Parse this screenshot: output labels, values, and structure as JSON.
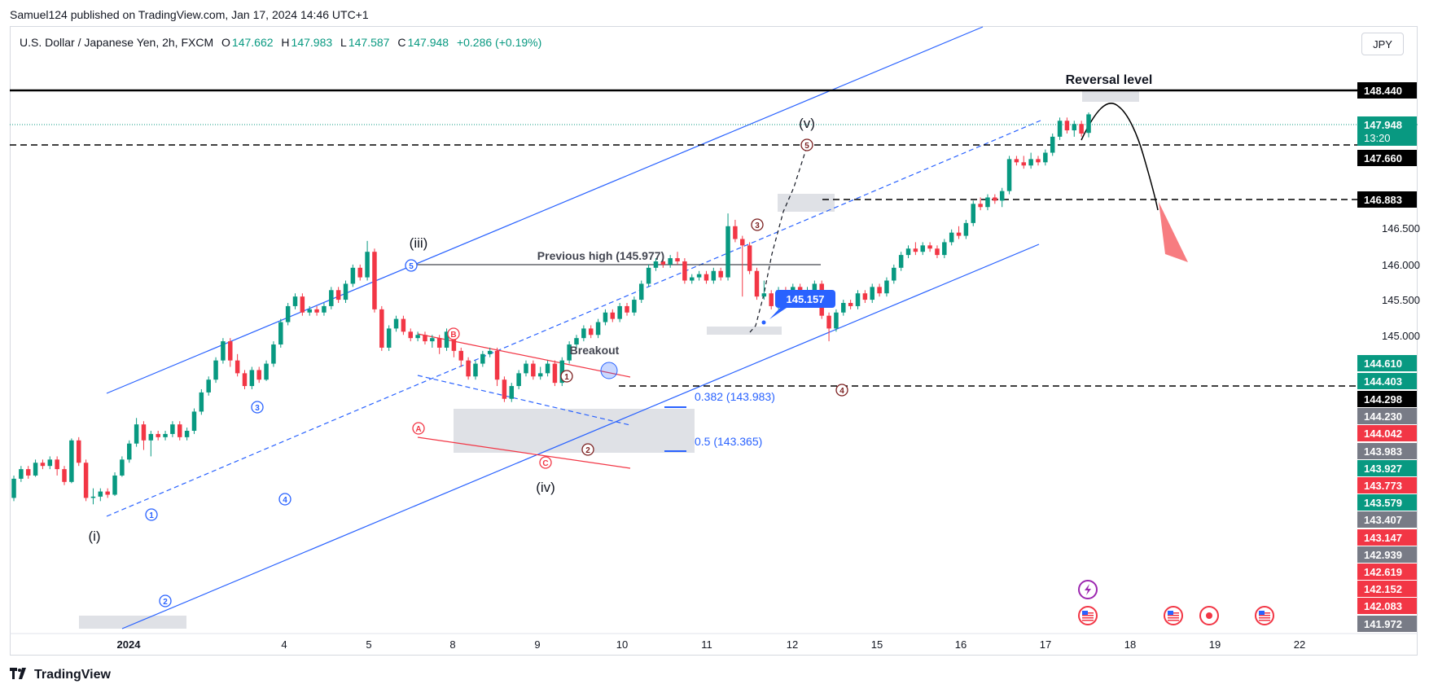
{
  "publisher_line": "Samuel124 published on TradingView.com, Jan 17, 2024 14:46 UTC+1",
  "symbol": {
    "name": "U.S. Dollar / Japanese Yen, 2h, FXCM",
    "o_label": "O",
    "o": "147.662",
    "h_label": "H",
    "h": "147.983",
    "l_label": "L",
    "l": "147.587",
    "c_label": "C",
    "c": "147.948",
    "change": "+0.286 (+0.19%)"
  },
  "currency_button": "JPY",
  "brand": "TradingView",
  "colors": {
    "up": "#089981",
    "down": "#f23645",
    "channel": "#2962ff",
    "accent": "#2962ff"
  },
  "chart_data": {
    "type": "candlestick",
    "timeframe": "2h",
    "x_ticks": [
      "2024",
      "4",
      "5",
      "8",
      "9",
      "10",
      "11",
      "12",
      "15",
      "16",
      "17",
      "18",
      "19",
      "22"
    ],
    "y_ticks": [
      "146.500",
      "146.000",
      "145.500",
      "145.000"
    ],
    "price_tags": [
      {
        "label": "148.440",
        "color": "#000000"
      },
      {
        "label": "147.948",
        "sub": "13:20",
        "color": "#089981"
      },
      {
        "label": "147.660",
        "color": "#000000"
      },
      {
        "label": "146.883",
        "color": "#000000"
      },
      {
        "label": "144.610",
        "color": "#089981"
      },
      {
        "label": "144.403",
        "color": "#089981"
      },
      {
        "label": "144.298",
        "color": "#000000"
      },
      {
        "label": "144.230",
        "color": "#787b86"
      },
      {
        "label": "144.042",
        "color": "#f23645"
      },
      {
        "label": "143.983",
        "color": "#787b86"
      },
      {
        "label": "143.927",
        "color": "#089981"
      },
      {
        "label": "143.773",
        "color": "#f23645"
      },
      {
        "label": "143.579",
        "color": "#089981"
      },
      {
        "label": "143.407",
        "color": "#787b86"
      },
      {
        "label": "143.147",
        "color": "#f23645"
      },
      {
        "label": "142.939",
        "color": "#787b86"
      },
      {
        "label": "142.619",
        "color": "#f23645"
      },
      {
        "label": "142.152",
        "color": "#f23645"
      },
      {
        "label": "142.083",
        "color": "#f23645"
      },
      {
        "label": "141.972",
        "color": "#787b86"
      }
    ],
    "annotations": {
      "reversal": "Reversal level",
      "previous_high": "Previous high (145.977)",
      "breakout": "Breakout",
      "fib_382": "0.382 (143.983)",
      "fib_5": "0.5 (143.365)",
      "callout": "145.157",
      "wave_i": "(i)",
      "wave_iii": "(iii)",
      "wave_iv": "(iv)",
      "wave_v": "(v)",
      "circle_labels": [
        "1",
        "2",
        "3",
        "4",
        "5",
        "A",
        "B",
        "C"
      ]
    },
    "candles": [
      [
        141.95,
        142.25,
        141.9,
        142.3
      ],
      [
        142.25,
        142.4,
        142.2,
        142.45
      ],
      [
        142.4,
        142.3,
        142.25,
        142.45
      ],
      [
        142.3,
        142.5,
        142.28,
        142.55
      ],
      [
        142.5,
        142.45,
        142.4,
        142.55
      ],
      [
        142.45,
        142.55,
        142.4,
        142.6
      ],
      [
        142.55,
        142.4,
        142.3,
        142.6
      ],
      [
        142.4,
        142.2,
        142.15,
        142.45
      ],
      [
        142.2,
        142.85,
        142.18,
        142.88
      ],
      [
        142.85,
        142.5,
        142.45,
        142.9
      ],
      [
        142.5,
        141.95,
        141.9,
        142.55
      ],
      [
        141.95,
        141.97,
        141.85,
        142.1
      ],
      [
        141.97,
        142.05,
        141.9,
        142.1
      ],
      [
        142.05,
        142.0,
        141.95,
        142.1
      ],
      [
        142.0,
        142.3,
        141.98,
        142.35
      ],
      [
        142.3,
        142.55,
        142.28,
        142.6
      ],
      [
        142.55,
        142.8,
        142.5,
        142.85
      ],
      [
        142.8,
        143.1,
        142.75,
        143.2
      ],
      [
        143.1,
        142.85,
        142.7,
        143.15
      ],
      [
        142.85,
        142.95,
        142.6,
        143.0
      ],
      [
        142.95,
        142.9,
        142.85,
        143.0
      ],
      [
        142.9,
        142.95,
        142.85,
        143.0
      ],
      [
        142.95,
        143.1,
        142.9,
        143.15
      ],
      [
        143.1,
        142.9,
        142.85,
        143.15
      ],
      [
        142.9,
        143.0,
        142.85,
        143.05
      ],
      [
        143.0,
        143.3,
        142.95,
        143.35
      ],
      [
        143.3,
        143.6,
        143.25,
        143.65
      ],
      [
        143.6,
        143.8,
        143.55,
        143.85
      ],
      [
        143.8,
        144.1,
        143.75,
        144.15
      ],
      [
        144.1,
        144.4,
        144.05,
        144.45
      ],
      [
        144.4,
        144.1,
        144.0,
        144.45
      ],
      [
        144.1,
        143.9,
        143.85,
        144.2
      ],
      [
        143.9,
        143.7,
        143.65,
        143.95
      ],
      [
        143.7,
        143.95,
        143.65,
        144.0
      ],
      [
        143.95,
        143.8,
        143.75,
        144.0
      ],
      [
        143.8,
        144.05,
        143.78,
        144.1
      ],
      [
        144.05,
        144.35,
        144.0,
        144.4
      ],
      [
        144.35,
        144.7,
        144.3,
        144.75
      ],
      [
        144.7,
        144.95,
        144.65,
        145.0
      ],
      [
        144.95,
        145.1,
        144.9,
        145.15
      ],
      [
        145.1,
        144.85,
        144.8,
        145.15
      ],
      [
        144.85,
        144.9,
        144.8,
        144.95
      ],
      [
        144.9,
        144.85,
        144.8,
        144.95
      ],
      [
        144.85,
        144.95,
        144.8,
        145.0
      ],
      [
        144.95,
        145.2,
        144.9,
        145.25
      ],
      [
        145.2,
        145.05,
        145.0,
        145.25
      ],
      [
        145.05,
        145.3,
        145.0,
        145.35
      ],
      [
        145.3,
        145.55,
        145.25,
        145.6
      ],
      [
        145.55,
        145.4,
        145.35,
        145.6
      ],
      [
        145.4,
        145.8,
        145.35,
        145.97
      ],
      [
        145.8,
        144.9,
        144.85,
        145.85
      ],
      [
        144.9,
        144.3,
        144.25,
        144.95
      ],
      [
        144.3,
        144.6,
        144.25,
        144.65
      ],
      [
        144.6,
        144.75,
        144.55,
        144.8
      ],
      [
        144.75,
        144.55,
        144.5,
        144.8
      ],
      [
        144.55,
        144.45,
        144.4,
        144.6
      ],
      [
        144.45,
        144.5,
        144.4,
        144.55
      ],
      [
        144.5,
        144.4,
        144.35,
        144.55
      ],
      [
        144.4,
        144.45,
        144.3,
        144.5
      ],
      [
        144.45,
        144.3,
        144.2,
        144.5
      ],
      [
        144.3,
        144.55,
        144.25,
        144.6
      ],
      [
        144.55,
        144.25,
        144.15,
        144.6
      ],
      [
        144.25,
        144.1,
        144.0,
        144.3
      ],
      [
        144.1,
        143.85,
        143.8,
        144.15
      ],
      [
        143.85,
        144.05,
        143.8,
        144.1
      ],
      [
        144.05,
        144.2,
        144.0,
        144.25
      ],
      [
        144.2,
        144.25,
        144.15,
        144.3
      ],
      [
        144.25,
        143.8,
        143.7,
        144.3
      ],
      [
        143.8,
        143.5,
        143.45,
        143.85
      ],
      [
        143.5,
        143.7,
        143.45,
        143.75
      ],
      [
        143.7,
        143.9,
        143.65,
        143.95
      ],
      [
        143.9,
        144.05,
        143.85,
        144.1
      ],
      [
        144.05,
        143.85,
        143.8,
        144.1
      ],
      [
        143.85,
        143.9,
        143.8,
        144.0
      ],
      [
        143.9,
        144.05,
        143.85,
        144.1
      ],
      [
        144.05,
        143.75,
        143.7,
        144.1
      ],
      [
        143.75,
        144.1,
        143.7,
        144.15
      ],
      [
        144.1,
        144.35,
        144.05,
        144.4
      ],
      [
        144.35,
        144.45,
        144.3,
        144.5
      ],
      [
        144.45,
        144.6,
        144.4,
        144.65
      ],
      [
        144.6,
        144.5,
        144.45,
        144.65
      ],
      [
        144.5,
        144.7,
        144.45,
        144.75
      ],
      [
        144.7,
        144.85,
        144.65,
        144.9
      ],
      [
        144.85,
        144.75,
        144.7,
        144.9
      ],
      [
        144.75,
        144.95,
        144.7,
        145.0
      ],
      [
        144.95,
        144.85,
        144.8,
        145.0
      ],
      [
        144.85,
        145.05,
        144.8,
        145.1
      ],
      [
        145.05,
        145.3,
        145.0,
        145.35
      ],
      [
        145.3,
        145.55,
        145.25,
        145.6
      ],
      [
        145.55,
        145.65,
        145.5,
        145.7
      ],
      [
        145.65,
        145.6,
        145.55,
        145.75
      ],
      [
        145.6,
        145.7,
        145.55,
        145.75
      ],
      [
        145.7,
        145.65,
        145.6,
        145.8
      ],
      [
        145.65,
        145.35,
        145.3,
        145.7
      ],
      [
        145.35,
        145.4,
        145.3,
        145.45
      ],
      [
        145.4,
        145.45,
        145.35,
        145.5
      ],
      [
        145.45,
        145.35,
        145.3,
        145.5
      ],
      [
        145.35,
        145.5,
        145.3,
        145.55
      ],
      [
        145.5,
        145.4,
        145.35,
        145.55
      ],
      [
        145.4,
        146.2,
        145.35,
        146.4
      ],
      [
        146.2,
        146.0,
        145.95,
        146.3
      ],
      [
        146.0,
        145.9,
        145.1,
        146.05
      ],
      [
        145.9,
        145.5,
        145.45,
        145.95
      ],
      [
        145.5,
        145.1,
        145.05,
        145.55
      ],
      [
        145.1,
        145.15,
        145.05,
        145.35
      ],
      [
        145.15,
        144.95,
        144.9,
        145.2
      ],
      [
        144.95,
        145.2,
        144.9,
        145.25
      ],
      [
        145.2,
        145.05,
        145.0,
        145.25
      ],
      [
        145.05,
        145.25,
        145.0,
        145.3
      ],
      [
        145.25,
        145.1,
        145.05,
        145.3
      ],
      [
        145.1,
        145.2,
        145.05,
        145.25
      ],
      [
        145.2,
        145.3,
        145.15,
        145.35
      ],
      [
        145.3,
        144.8,
        144.75,
        145.35
      ],
      [
        144.8,
        144.6,
        144.4,
        144.85
      ],
      [
        144.6,
        144.85,
        144.55,
        144.9
      ],
      [
        144.85,
        145.0,
        144.8,
        145.05
      ],
      [
        145.0,
        144.95,
        144.9,
        145.05
      ],
      [
        144.95,
        145.15,
        144.9,
        145.2
      ],
      [
        145.15,
        145.05,
        145.0,
        145.2
      ],
      [
        145.05,
        145.25,
        145.0,
        145.3
      ],
      [
        145.25,
        145.15,
        145.1,
        145.3
      ],
      [
        145.15,
        145.35,
        145.1,
        145.4
      ],
      [
        145.35,
        145.55,
        145.3,
        145.6
      ],
      [
        145.55,
        145.75,
        145.5,
        145.8
      ],
      [
        145.75,
        145.85,
        145.7,
        145.9
      ],
      [
        145.85,
        145.8,
        145.75,
        145.95
      ],
      [
        145.8,
        145.9,
        145.75,
        145.95
      ],
      [
        145.9,
        145.85,
        145.8,
        145.95
      ],
      [
        145.85,
        145.75,
        145.7,
        145.9
      ],
      [
        145.75,
        145.95,
        145.7,
        146.0
      ],
      [
        145.95,
        146.1,
        145.9,
        146.15
      ],
      [
        146.1,
        146.05,
        146.0,
        146.2
      ],
      [
        146.05,
        146.25,
        146.0,
        146.3
      ],
      [
        146.25,
        146.55,
        146.2,
        146.6
      ],
      [
        146.55,
        146.5,
        146.45,
        146.65
      ],
      [
        146.5,
        146.65,
        146.45,
        146.7
      ],
      [
        146.65,
        146.6,
        146.55,
        146.7
      ],
      [
        146.6,
        146.75,
        146.5,
        146.8
      ],
      [
        146.75,
        147.25,
        146.7,
        147.3
      ],
      [
        147.25,
        147.2,
        147.15,
        147.3
      ],
      [
        147.2,
        147.15,
        147.1,
        147.3
      ],
      [
        147.15,
        147.25,
        147.1,
        147.35
      ],
      [
        147.25,
        147.2,
        147.15,
        147.3
      ],
      [
        147.2,
        147.35,
        147.15,
        147.4
      ],
      [
        147.35,
        147.6,
        147.3,
        147.65
      ],
      [
        147.6,
        147.85,
        147.55,
        147.9
      ],
      [
        147.85,
        147.7,
        147.65,
        147.9
      ],
      [
        147.7,
        147.8,
        147.6,
        147.85
      ],
      [
        147.8,
        147.65,
        147.6,
        147.85
      ],
      [
        147.66,
        147.95,
        147.59,
        147.98
      ]
    ]
  }
}
